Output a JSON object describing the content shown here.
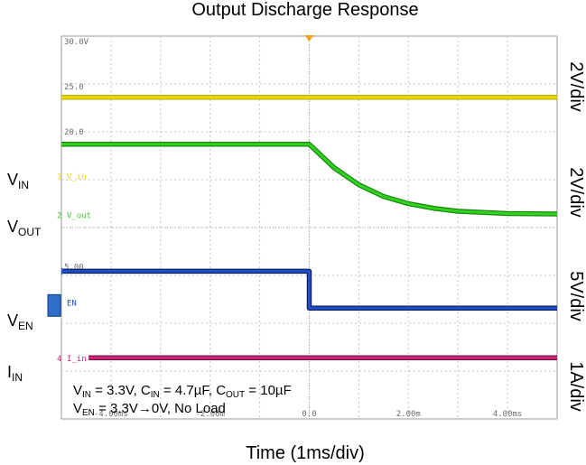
{
  "chart_data": {
    "type": "line",
    "title": "Output Discharge Response",
    "xlabel": "Time (1ms/div)",
    "x_unit": "ms",
    "xlim": [
      -5,
      5
    ],
    "x_ticks": [
      {
        "v": -4,
        "label": "-4.00ms"
      },
      {
        "v": -2,
        "label": "-2.00m"
      },
      {
        "v": 0,
        "label": "0.0"
      },
      {
        "v": 2,
        "label": "2.00m"
      },
      {
        "v": 4,
        "label": "4.00ms"
      }
    ],
    "y_ref_labels": [
      {
        "text": "30.0V",
        "v": 30
      },
      {
        "text": "25.0",
        "v": 25
      },
      {
        "text": "20.0",
        "v": 20
      },
      {
        "text": "5.00",
        "v": 5
      }
    ],
    "ylim": [
      -12.5,
      30
    ],
    "grid": true,
    "series": [
      {
        "name": "V_in",
        "label_main": "V",
        "label_sub": "IN",
        "trace_tag": "V_in",
        "marker": "1",
        "scale": "2V/div",
        "color": "#f2d600",
        "trace_color": "#b8b800",
        "points": [
          [
            -5,
            23.2
          ],
          [
            5,
            23.2
          ]
        ]
      },
      {
        "name": "V_out",
        "label_main": "V",
        "label_sub": "OUT",
        "trace_tag": "V_out",
        "marker": "2",
        "scale": "2V/div",
        "color": "#33d11f",
        "trace_color": "#158a0f",
        "points": [
          [
            -5,
            18.0
          ],
          [
            0,
            18.0
          ],
          [
            0.5,
            15.4
          ],
          [
            1,
            13.5
          ],
          [
            1.5,
            12.2
          ],
          [
            2,
            11.4
          ],
          [
            2.5,
            10.9
          ],
          [
            3,
            10.55
          ],
          [
            4,
            10.3
          ],
          [
            5,
            10.25
          ]
        ]
      },
      {
        "name": "EN",
        "label_main": "V",
        "label_sub": "EN",
        "trace_tag": "EN",
        "marker": "3",
        "scale": "5V/div",
        "color": "#1f4fcc",
        "trace_color": "#0a1f5c",
        "points": [
          [
            -5,
            3.9
          ],
          [
            0,
            3.9
          ],
          [
            0,
            -0.2
          ],
          [
            5,
            -0.2
          ]
        ]
      },
      {
        "name": "I_in",
        "label_main": "I",
        "label_sub": "IN",
        "trace_tag": "I_in",
        "marker": "4",
        "scale": "1A/div",
        "color": "#d4237a",
        "trace_color": "#7a0f45",
        "points": [
          [
            -4.45,
            -5.7
          ],
          [
            5,
            -5.7
          ]
        ]
      }
    ],
    "conditions": {
      "line1": [
        {
          "t": "V",
          "sub": false
        },
        {
          "t": "IN",
          "sub": true
        },
        {
          "t": " = 3.3V, C",
          "sub": false
        },
        {
          "t": "IN",
          "sub": true
        },
        {
          "t": " = 4.7µF, C",
          "sub": false
        },
        {
          "t": "OUT",
          "sub": true
        },
        {
          "t": " = 10µF",
          "sub": false
        }
      ],
      "line2": [
        {
          "t": "V",
          "sub": false
        },
        {
          "t": "EN",
          "sub": true
        },
        {
          "t": " = 3.3V→0V, No Load",
          "sub": false
        }
      ]
    },
    "trigger_marker_color": "#f5a21e"
  }
}
